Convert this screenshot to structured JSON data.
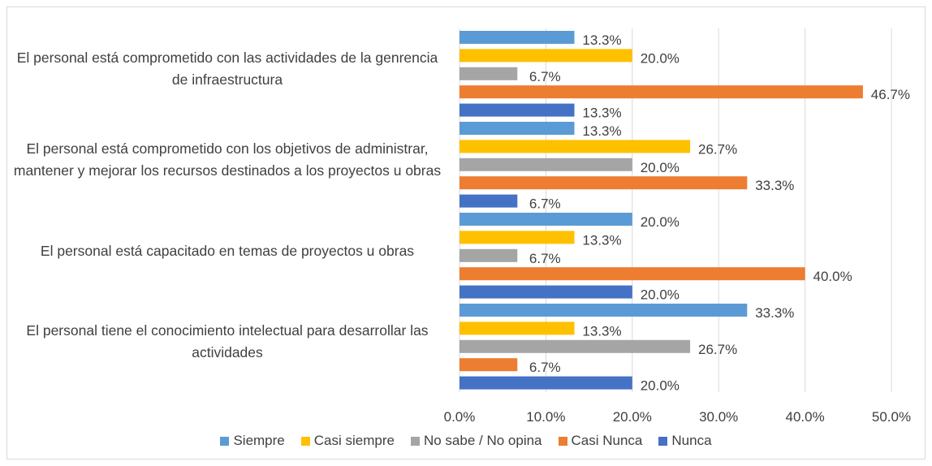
{
  "chart_data": {
    "type": "barh",
    "categories": [
      "El personal está comprometido con las actividades de la genrencia de infraestructura",
      "El personal está comprometido con los objetivos de administrar, mantener y mejorar los recursos destinados a los proyectos u obras",
      "El personal está capacitado en temas de proyectos u obras",
      "El personal tiene el conocimiento intelectual para desarrollar las actividades"
    ],
    "series": [
      {
        "name": "Siempre",
        "color": "#5b9bd5",
        "values": [
          13.3,
          13.3,
          20.0,
          33.3
        ],
        "value_labels": [
          "13.3%",
          "13.3%",
          "20.0%",
          "33.3%"
        ]
      },
      {
        "name": "Casi siempre",
        "color": "#ffc000",
        "values": [
          20.0,
          26.7,
          13.3,
          13.3
        ],
        "value_labels": [
          "20.0%",
          "26.7%",
          "13.3%",
          "13.3%"
        ]
      },
      {
        "name": "No sabe / No opina",
        "color": "#a5a5a5",
        "values": [
          6.7,
          20.0,
          6.7,
          26.7
        ],
        "value_labels": [
          "6.7%",
          "20.0%",
          "6.7%",
          "26.7%"
        ]
      },
      {
        "name": "Casi Nunca",
        "color": "#ed7d31",
        "values": [
          46.7,
          33.3,
          40.0,
          6.7
        ],
        "value_labels": [
          "46.7%",
          "33.3%",
          "40.0%",
          "6.7%"
        ]
      },
      {
        "name": "Nunca",
        "color": "#4472c4",
        "values": [
          13.3,
          6.7,
          20.0,
          20.0
        ],
        "value_labels": [
          "13.3%",
          "6.7%",
          "20.0%",
          "20.0%"
        ]
      }
    ],
    "xlim": [
      0,
      50
    ],
    "xticks": [
      {
        "value": 0,
        "label": "0.0%"
      },
      {
        "value": 10,
        "label": "10.0%"
      },
      {
        "value": 20,
        "label": "20.0%"
      },
      {
        "value": 30,
        "label": "30.0%"
      },
      {
        "value": 40,
        "label": "40.0%"
      },
      {
        "value": 50,
        "label": "50.0%"
      }
    ],
    "grid": true,
    "legend": "bottom"
  }
}
